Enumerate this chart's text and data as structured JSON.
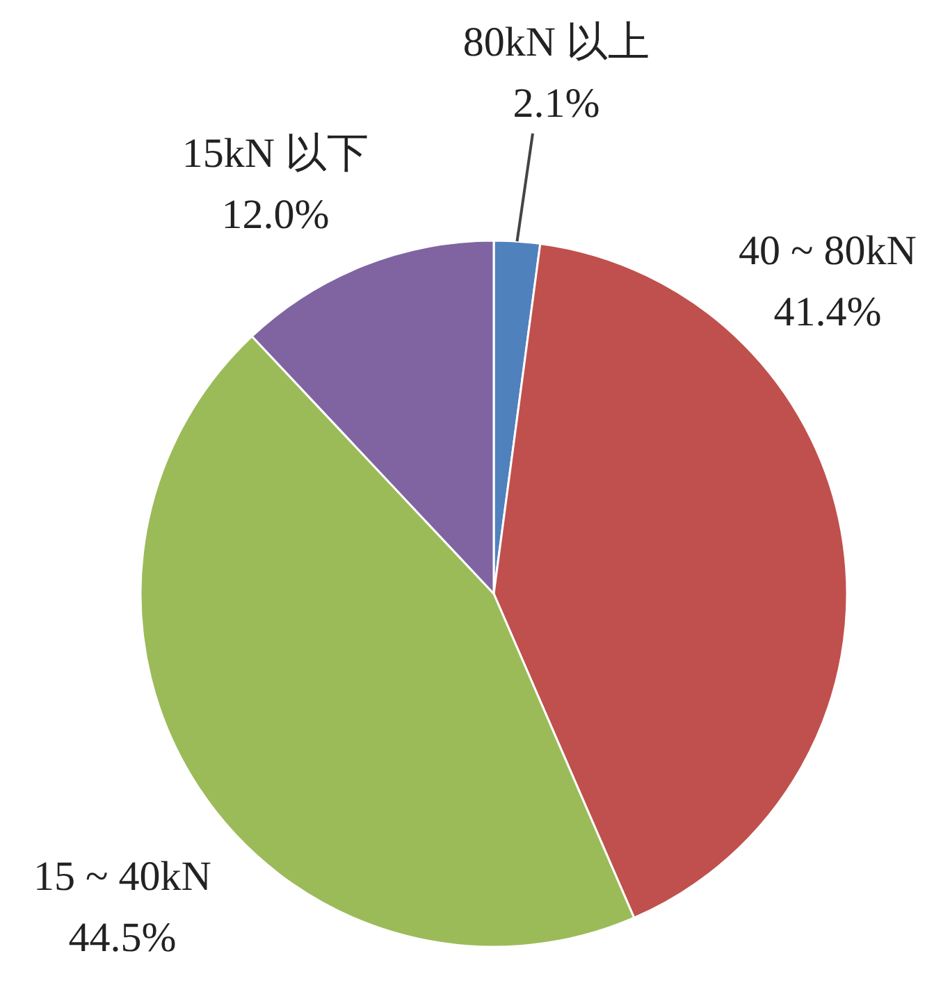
{
  "chart_data": {
    "type": "pie",
    "categories": [
      "80kN 以上",
      "40 ~ 80kN",
      "15 ~ 40kN",
      "15kN 以下"
    ],
    "values": [
      2.1,
      41.4,
      44.5,
      12.0
    ],
    "colors": [
      "#4f81bd",
      "#c0504d",
      "#9bbb59",
      "#8064a2"
    ],
    "value_labels": [
      "2.1%",
      "41.4%",
      "44.5%",
      "12.0%"
    ]
  }
}
